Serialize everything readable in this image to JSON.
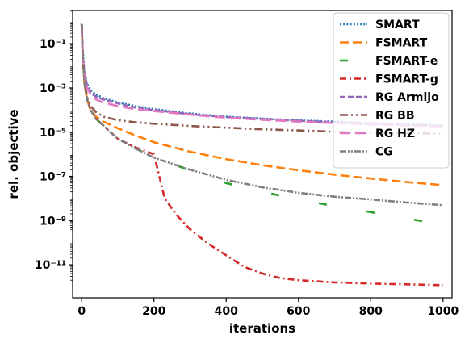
{
  "chart_data": {
    "type": "line",
    "title": "",
    "xlabel": "iterations",
    "ylabel": "rel. objective",
    "xlim": [
      -25,
      1025
    ],
    "ylim": [
      3.2e-13,
      3.2
    ],
    "yscale": "log",
    "xticks": [
      0,
      200,
      400,
      600,
      800,
      1000
    ],
    "xtick_labels": [
      "0",
      "200",
      "400",
      "600",
      "800",
      "1000"
    ],
    "yticks": [
      1e-11,
      1e-09,
      1e-07,
      1e-05,
      0.001,
      0.1
    ],
    "ytick_labels": [
      "10⁻¹¹",
      "10⁻⁹",
      "10⁻⁷",
      "10⁻⁵",
      "10⁻³",
      "10⁻¹"
    ],
    "grid": false,
    "legend": "top-right",
    "series": [
      {
        "name": "SMART",
        "color": "#1f77b4",
        "dash": "2 2.2",
        "width": 2.6,
        "x": [
          0,
          3,
          8,
          15,
          25,
          40,
          60,
          100,
          150,
          200,
          300,
          400,
          500,
          600,
          700,
          800,
          900,
          1000
        ],
        "y": [
          0.8,
          0.05,
          0.005,
          0.0015,
          0.0008,
          0.0005,
          0.00035,
          0.00022,
          0.00015,
          0.00011,
          7e-05,
          5e-05,
          4.1e-05,
          3.4e-05,
          3e-05,
          2.6e-05,
          2.3e-05,
          2e-05
        ]
      },
      {
        "name": "FSMART",
        "color": "#ff7f0e",
        "dash": "11 5",
        "width": 2.6,
        "x": [
          0,
          3,
          8,
          15,
          25,
          40,
          60,
          100,
          150,
          200,
          300,
          400,
          500,
          600,
          700,
          800,
          900,
          1000
        ],
        "y": [
          0.8,
          0.03,
          0.0015,
          0.0003,
          0.0001,
          5e-05,
          3e-05,
          1.5e-05,
          7e-06,
          3.5e-06,
          1.3e-06,
          6e-07,
          3.2e-07,
          1.9e-07,
          1.2e-07,
          8e-08,
          5.5e-08,
          4e-08
        ]
      },
      {
        "name": "FSMART-e",
        "color": "#2ca02c",
        "dash": "10 50",
        "width": 2.6,
        "x": [
          0,
          3,
          8,
          15,
          25,
          40,
          60,
          100,
          150,
          200,
          300,
          400,
          500,
          600,
          700,
          800,
          900,
          1000
        ],
        "y": [
          0.8,
          0.03,
          0.0015,
          0.0003,
          0.0001,
          4e-05,
          2e-05,
          5e-06,
          1.8e-06,
          8e-07,
          1.8e-07,
          5e-08,
          2e-08,
          9e-09,
          4.5e-09,
          2.4e-09,
          1.2e-09,
          7e-10
        ]
      },
      {
        "name": "FSMART-g",
        "color": "#d62728",
        "dash": "8 4 2 4",
        "width": 2.6,
        "x": [
          0,
          3,
          8,
          15,
          25,
          40,
          60,
          100,
          150,
          200,
          230,
          260,
          300,
          350,
          400,
          450,
          500,
          550,
          600,
          700,
          800,
          900,
          1000
        ],
        "y": [
          0.8,
          0.03,
          0.0015,
          0.0003,
          0.0001,
          4e-05,
          2e-05,
          5e-06,
          2e-06,
          1e-06,
          1e-08,
          2e-09,
          4e-10,
          9e-11,
          2.7e-11,
          8e-12,
          4e-12,
          2.5e-12,
          2e-12,
          1.6e-12,
          1.4e-12,
          1.3e-12,
          1.2e-12
        ]
      },
      {
        "name": "RG Armijo",
        "color": "#9467bd",
        "dash": "7 3",
        "width": 2.6,
        "x": [
          0,
          3,
          8,
          15,
          25,
          40,
          60,
          100,
          150,
          200,
          300,
          400,
          500,
          600,
          700,
          800,
          900,
          1000
        ],
        "y": [
          0.8,
          0.03,
          0.004,
          0.0013,
          0.0006,
          0.0004,
          0.0003,
          0.0002,
          0.00013,
          0.0001,
          6.5e-05,
          4.8e-05,
          4e-05,
          3.3e-05,
          2.8e-05,
          2.4e-05,
          2.1e-05,
          1.9e-05
        ]
      },
      {
        "name": "RG BB",
        "color": "#8c564b",
        "dash": "10 4 2 4 2 4",
        "width": 2.6,
        "x": [
          0,
          3,
          8,
          15,
          25,
          40,
          60,
          100,
          150,
          200,
          300,
          400,
          500,
          600,
          700,
          800,
          900,
          1000
        ],
        "y": [
          0.8,
          0.03,
          0.002,
          0.0004,
          0.00015,
          8e-05,
          5e-05,
          3.5e-05,
          2.8e-05,
          2.4e-05,
          1.9e-05,
          1.6e-05,
          1.35e-05,
          1.2e-05,
          1.05e-05,
          9.5e-06,
          9e-06,
          8.5e-06
        ]
      },
      {
        "name": "RG HZ",
        "color": "#e377c2",
        "dash": "13 6",
        "width": 2.6,
        "x": [
          0,
          3,
          8,
          15,
          25,
          40,
          60,
          100,
          150,
          200,
          300,
          400,
          500,
          600,
          700,
          800,
          900,
          1000
        ],
        "y": [
          0.8,
          0.03,
          0.003,
          0.001,
          0.0005,
          0.0003,
          0.00022,
          0.00015,
          0.00011,
          9e-05,
          6.2e-05,
          4.5e-05,
          3.6e-05,
          3e-05,
          2.6e-05,
          2.2e-05,
          2e-05,
          1.8e-05
        ]
      },
      {
        "name": "CG",
        "color": "#7f7f7f",
        "dash": "8 2 2 2 2 2",
        "width": 2.6,
        "x": [
          0,
          3,
          8,
          15,
          25,
          40,
          60,
          100,
          150,
          200,
          300,
          400,
          500,
          600,
          700,
          800,
          900,
          1000
        ],
        "y": [
          0.8,
          0.03,
          0.0015,
          0.0003,
          0.0001,
          4e-05,
          2e-05,
          5e-06,
          1.8e-06,
          7e-07,
          2e-07,
          7e-08,
          3.2e-08,
          1.8e-08,
          1.2e-08,
          9e-09,
          6.5e-09,
          5e-09
        ]
      }
    ]
  }
}
